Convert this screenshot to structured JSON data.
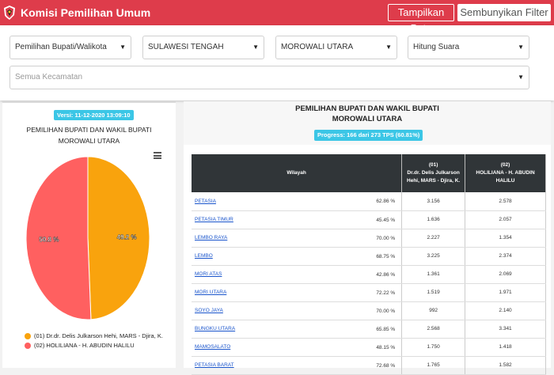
{
  "header": {
    "title": "Komisi Pemilihan Umum",
    "btn_peta": "Tampilkan Peta",
    "btn_filter": "Sembunyikan Filter"
  },
  "filters": {
    "election": "Pemilihan Bupati/Walikota",
    "province": "SULAWESI TENGAH",
    "regency": "MOROWALI UTARA",
    "mode": "Hitung Suara",
    "district": "Semua Kecamatan"
  },
  "left": {
    "version": "Versi: 11-12-2020 13:09:10",
    "title_line1": "PEMILIHAN BUPATI DAN WAKIL BUPATI",
    "title_line2": "MOROWALI UTARA",
    "legend": [
      {
        "label": "(01) Dr.dr. Delis Julkarson Hehi, MARS - Djira, K.",
        "color": "#f9a30d"
      },
      {
        "label": "(02) HOLILIANA - H. ABUDIN HALILU",
        "color": "#ff6060"
      }
    ]
  },
  "chart_data": {
    "type": "pie",
    "labels": [
      "(01) Dr.dr. Delis Julkarson Hehi, MARS - Djira, K.",
      "(02) HOLILIANA - H. ABUDIN HALILU"
    ],
    "values": [
      49.2,
      50.8
    ],
    "data_labels": [
      "49.2 %",
      "50.8 %"
    ],
    "colors": [
      "#f9a30d",
      "#ff6060"
    ],
    "title": "PEMILIHAN BUPATI DAN WAKIL BUPATI MOROWALI UTARA",
    "legend_placement": "bottom"
  },
  "right": {
    "title_line1": "PEMILIHAN BUPATI DAN WAKIL BUPATI",
    "title_line2": "MOROWALI UTARA",
    "progress": "Progress: 166 dari 273 TPS (60.81%)",
    "columns": {
      "wilayah": "Wilayah",
      "c1_line1": "(01)",
      "c1_line2": "Dr.dr. Delis Julkarson",
      "c1_line3": "Hehi, MARS - Djira, K.",
      "c2_line1": "(02)",
      "c2_line2": "HOLILIANA - H. ABUDIN",
      "c2_line3": "HALILU"
    },
    "rows": [
      {
        "name": "PETASIA",
        "pct": "62.86 %",
        "v1": "3.156",
        "v2": "2.578"
      },
      {
        "name": "PETASIA TIMUR",
        "pct": "45.45 %",
        "v1": "1.636",
        "v2": "2.057"
      },
      {
        "name": "LEMBO RAYA",
        "pct": "70.00 %",
        "v1": "2.227",
        "v2": "1.354"
      },
      {
        "name": "LEMBO",
        "pct": "68.75 %",
        "v1": "3.225",
        "v2": "2.374"
      },
      {
        "name": "MORI ATAS",
        "pct": "42.86 %",
        "v1": "1.361",
        "v2": "2.069"
      },
      {
        "name": "MORI UTARA",
        "pct": "72.22 %",
        "v1": "1.519",
        "v2": "1.971"
      },
      {
        "name": "SOYO JAYA",
        "pct": "70.00 %",
        "v1": "992",
        "v2": "2.140"
      },
      {
        "name": "BUNGKU UTARA",
        "pct": "65.85 %",
        "v1": "2.568",
        "v2": "3.341"
      },
      {
        "name": "MAMOSALATO",
        "pct": "48.15 %",
        "v1": "1.750",
        "v2": "1.418"
      },
      {
        "name": "PETASIA BARAT",
        "pct": "72.68 %",
        "v1": "1.765",
        "v2": "1.582"
      }
    ]
  }
}
